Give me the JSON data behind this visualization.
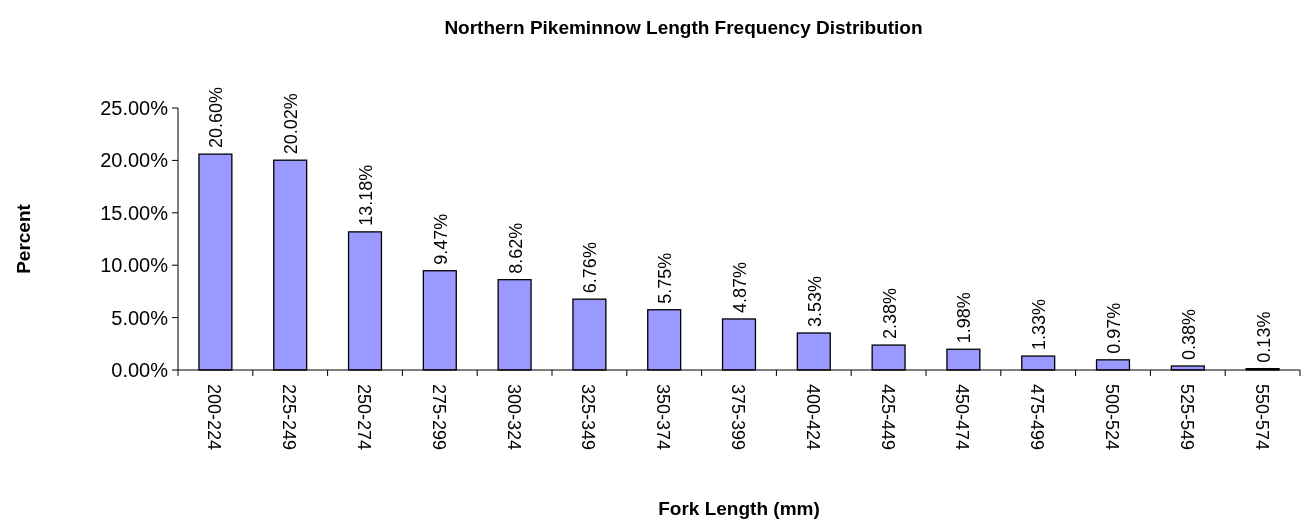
{
  "chart_data": {
    "type": "bar",
    "title": "Northern Pikeminnow Length Frequency Distribution",
    "xlabel": "Fork Length (mm)",
    "ylabel": "Percent",
    "categories": [
      "200-224",
      "225-249",
      "250-274",
      "275-299",
      "300-324",
      "325-349",
      "350-374",
      "375-399",
      "400-424",
      "425-449",
      "450-474",
      "475-499",
      "500-524",
      "525-549",
      "550-574"
    ],
    "values": [
      20.6,
      20.02,
      13.18,
      9.47,
      8.62,
      6.76,
      5.75,
      4.87,
      3.53,
      2.38,
      1.98,
      1.33,
      0.97,
      0.38,
      0.13
    ],
    "value_labels": [
      "20.60%",
      "20.02%",
      "13.18%",
      "9.47%",
      "8.62%",
      "6.76%",
      "5.75%",
      "4.87%",
      "3.53%",
      "2.38%",
      "1.98%",
      "1.33%",
      "0.97%",
      "0.38%",
      "0.13%"
    ],
    "color": "#9999ff",
    "ylim": [
      0,
      25
    ],
    "yticks": [
      {
        "value": 0,
        "label": "0.00%"
      },
      {
        "value": 5,
        "label": "5.00%"
      },
      {
        "value": 10,
        "label": "10.00%"
      },
      {
        "value": 15,
        "label": "15.00%"
      },
      {
        "value": 20,
        "label": "20.00%"
      },
      {
        "value": 25,
        "label": "25.00%"
      }
    ],
    "grid": false
  }
}
